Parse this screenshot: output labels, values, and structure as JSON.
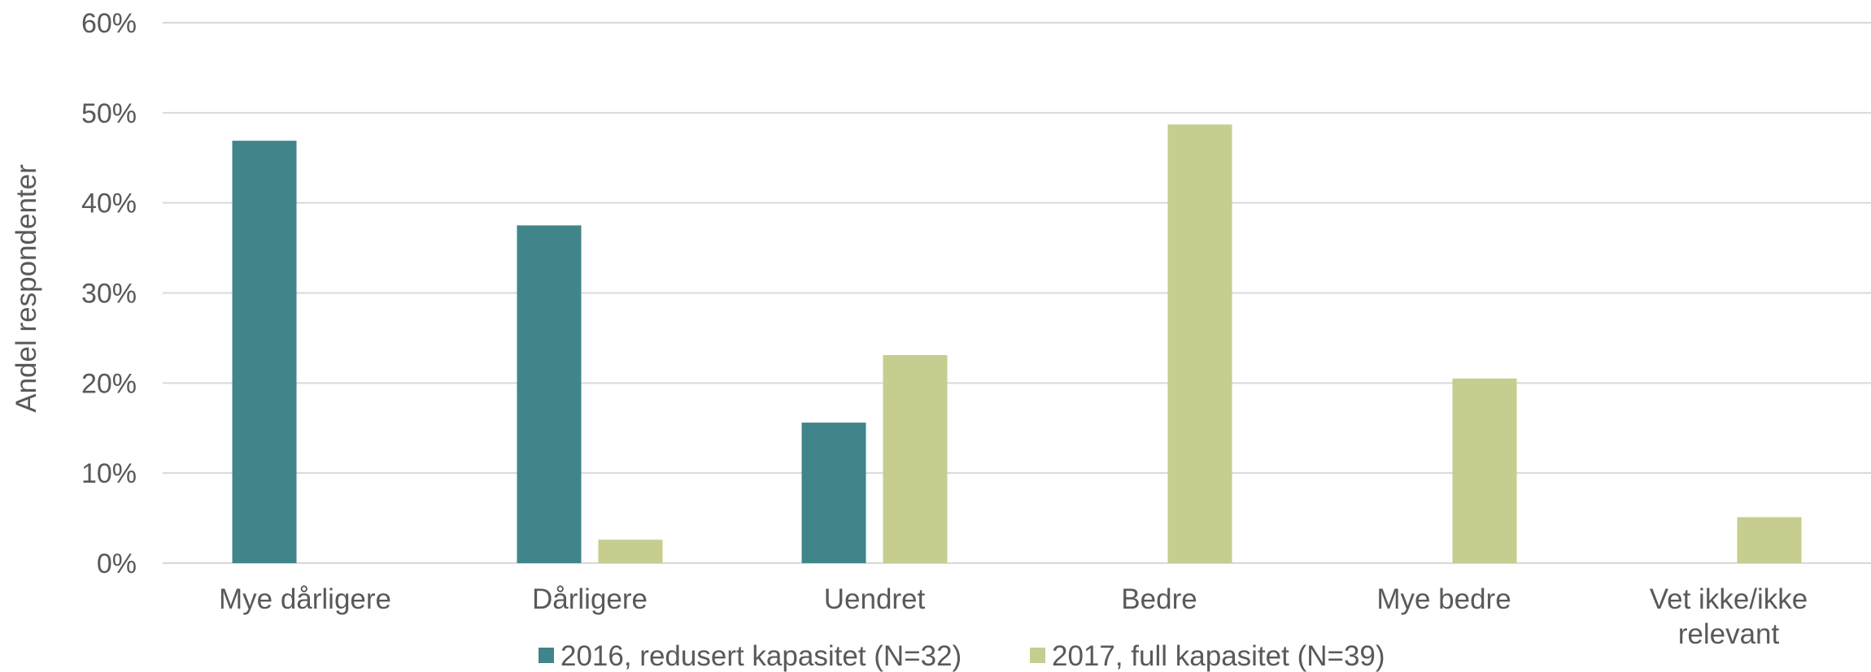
{
  "chart_data": {
    "type": "bar",
    "title": "",
    "xlabel": "",
    "ylabel": "Andel respondenter",
    "ylim": [
      0,
      60
    ],
    "yticks": [
      "0%",
      "10%",
      "20%",
      "30%",
      "40%",
      "50%",
      "60%"
    ],
    "grid": true,
    "legend_position": "bottom",
    "categories": [
      "Mye dårligere",
      "Dårligere",
      "Uendret",
      "Bedre",
      "Mye bedre",
      "Vet ikke/ikke relevant"
    ],
    "series": [
      {
        "name": "2016, redusert kapasitet (N=32)",
        "color": "#3f858a",
        "values": [
          46.9,
          37.5,
          15.6,
          0,
          0,
          0
        ]
      },
      {
        "name": "2017, full kapasitet (N=39)",
        "color": "#c6cd8f",
        "values": [
          0,
          2.6,
          23.1,
          48.7,
          20.5,
          5.1
        ]
      }
    ]
  }
}
